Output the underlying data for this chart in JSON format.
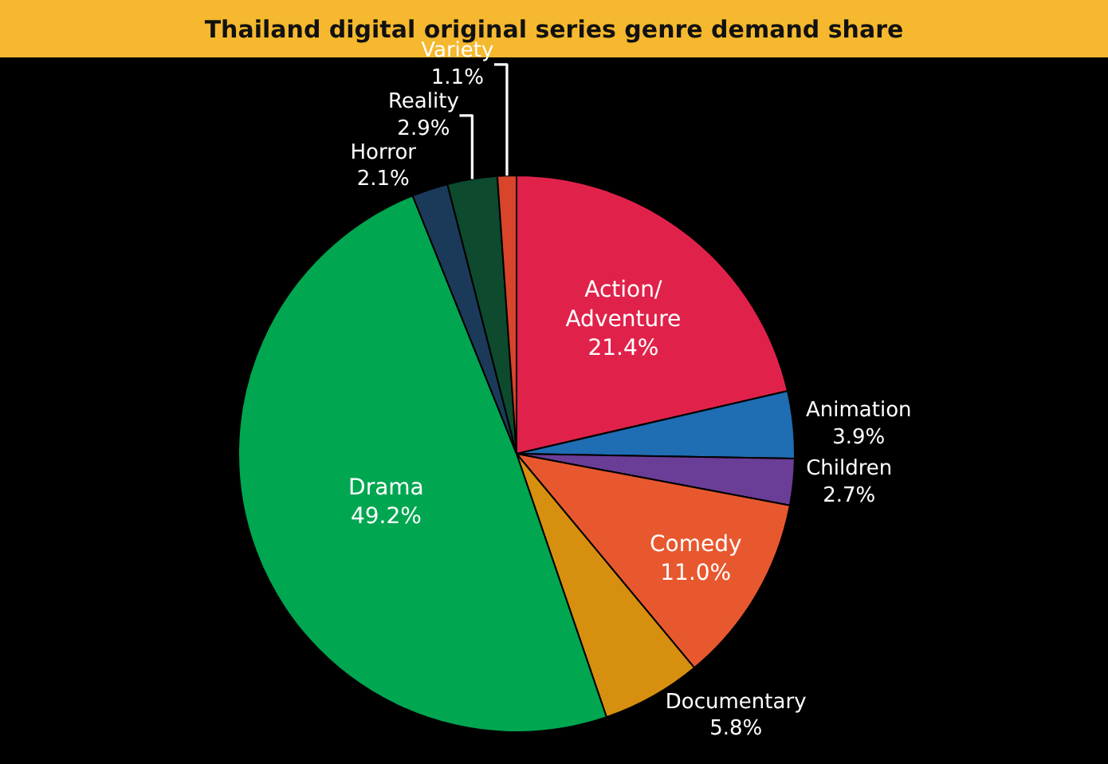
{
  "chart_data": {
    "type": "pie",
    "title": "Thailand digital original series genre demand share",
    "categories": [
      "Action/Adventure",
      "Animation",
      "Children",
      "Comedy",
      "Documentary",
      "Drama",
      "Horror",
      "Reality",
      "Variety"
    ],
    "values": [
      21.4,
      3.9,
      2.7,
      11.0,
      5.8,
      49.2,
      2.1,
      2.9,
      1.1
    ],
    "value_labels": [
      "21.4%",
      "3.9%",
      "2.7%",
      "11.0%",
      "5.8%",
      "49.2%",
      "2.1%",
      "2.9%",
      "1.1%"
    ],
    "colors": [
      "#e0224b",
      "#1f6db3",
      "#6a3d96",
      "#e8582f",
      "#d68f0f",
      "#00a650",
      "#1b3a5a",
      "#0d4a2e",
      "#d8452a"
    ],
    "legend": false
  }
}
